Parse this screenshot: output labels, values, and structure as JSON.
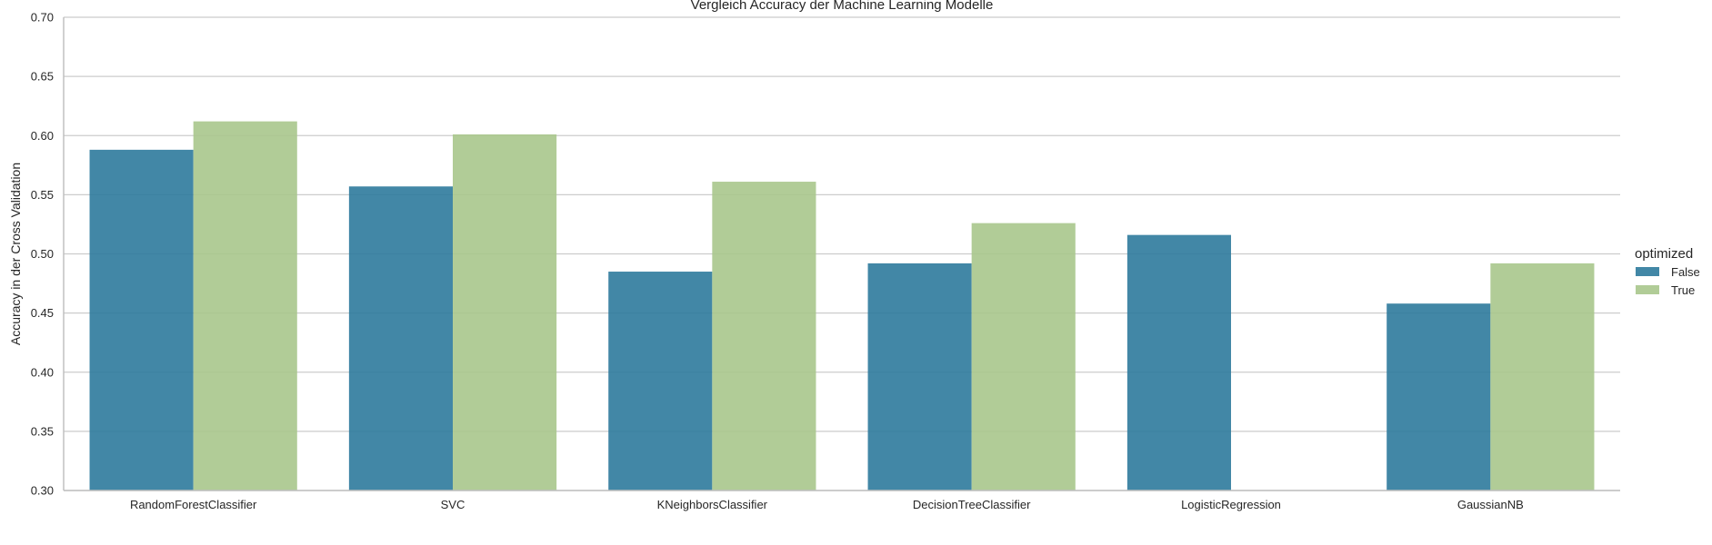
{
  "chart_data": {
    "type": "bar",
    "title": "Vergleich Accuracy der Machine Learning Modelle",
    "xlabel": "",
    "ylabel": "Accuracy in der Cross Validation",
    "ylim": [
      0.3,
      0.7
    ],
    "yticks": [
      "0.30",
      "0.35",
      "0.40",
      "0.45",
      "0.50",
      "0.55",
      "0.60",
      "0.65",
      "0.70"
    ],
    "grid": "horizontal",
    "categories": [
      "RandomForestClassifier",
      "SVC",
      "KNeighborsClassifier",
      "DecisionTreeClassifier",
      "LogisticRegression",
      "GaussianNB"
    ],
    "series": [
      {
        "name": "False",
        "color": "#2e7a9c",
        "values": [
          0.588,
          0.557,
          0.485,
          0.492,
          0.516,
          0.458
        ]
      },
      {
        "name": "True",
        "color": "#a8c68c",
        "values": [
          0.612,
          0.601,
          0.561,
          0.526,
          null,
          0.492
        ]
      }
    ],
    "legend": {
      "title": "optimized",
      "position": "right"
    }
  }
}
